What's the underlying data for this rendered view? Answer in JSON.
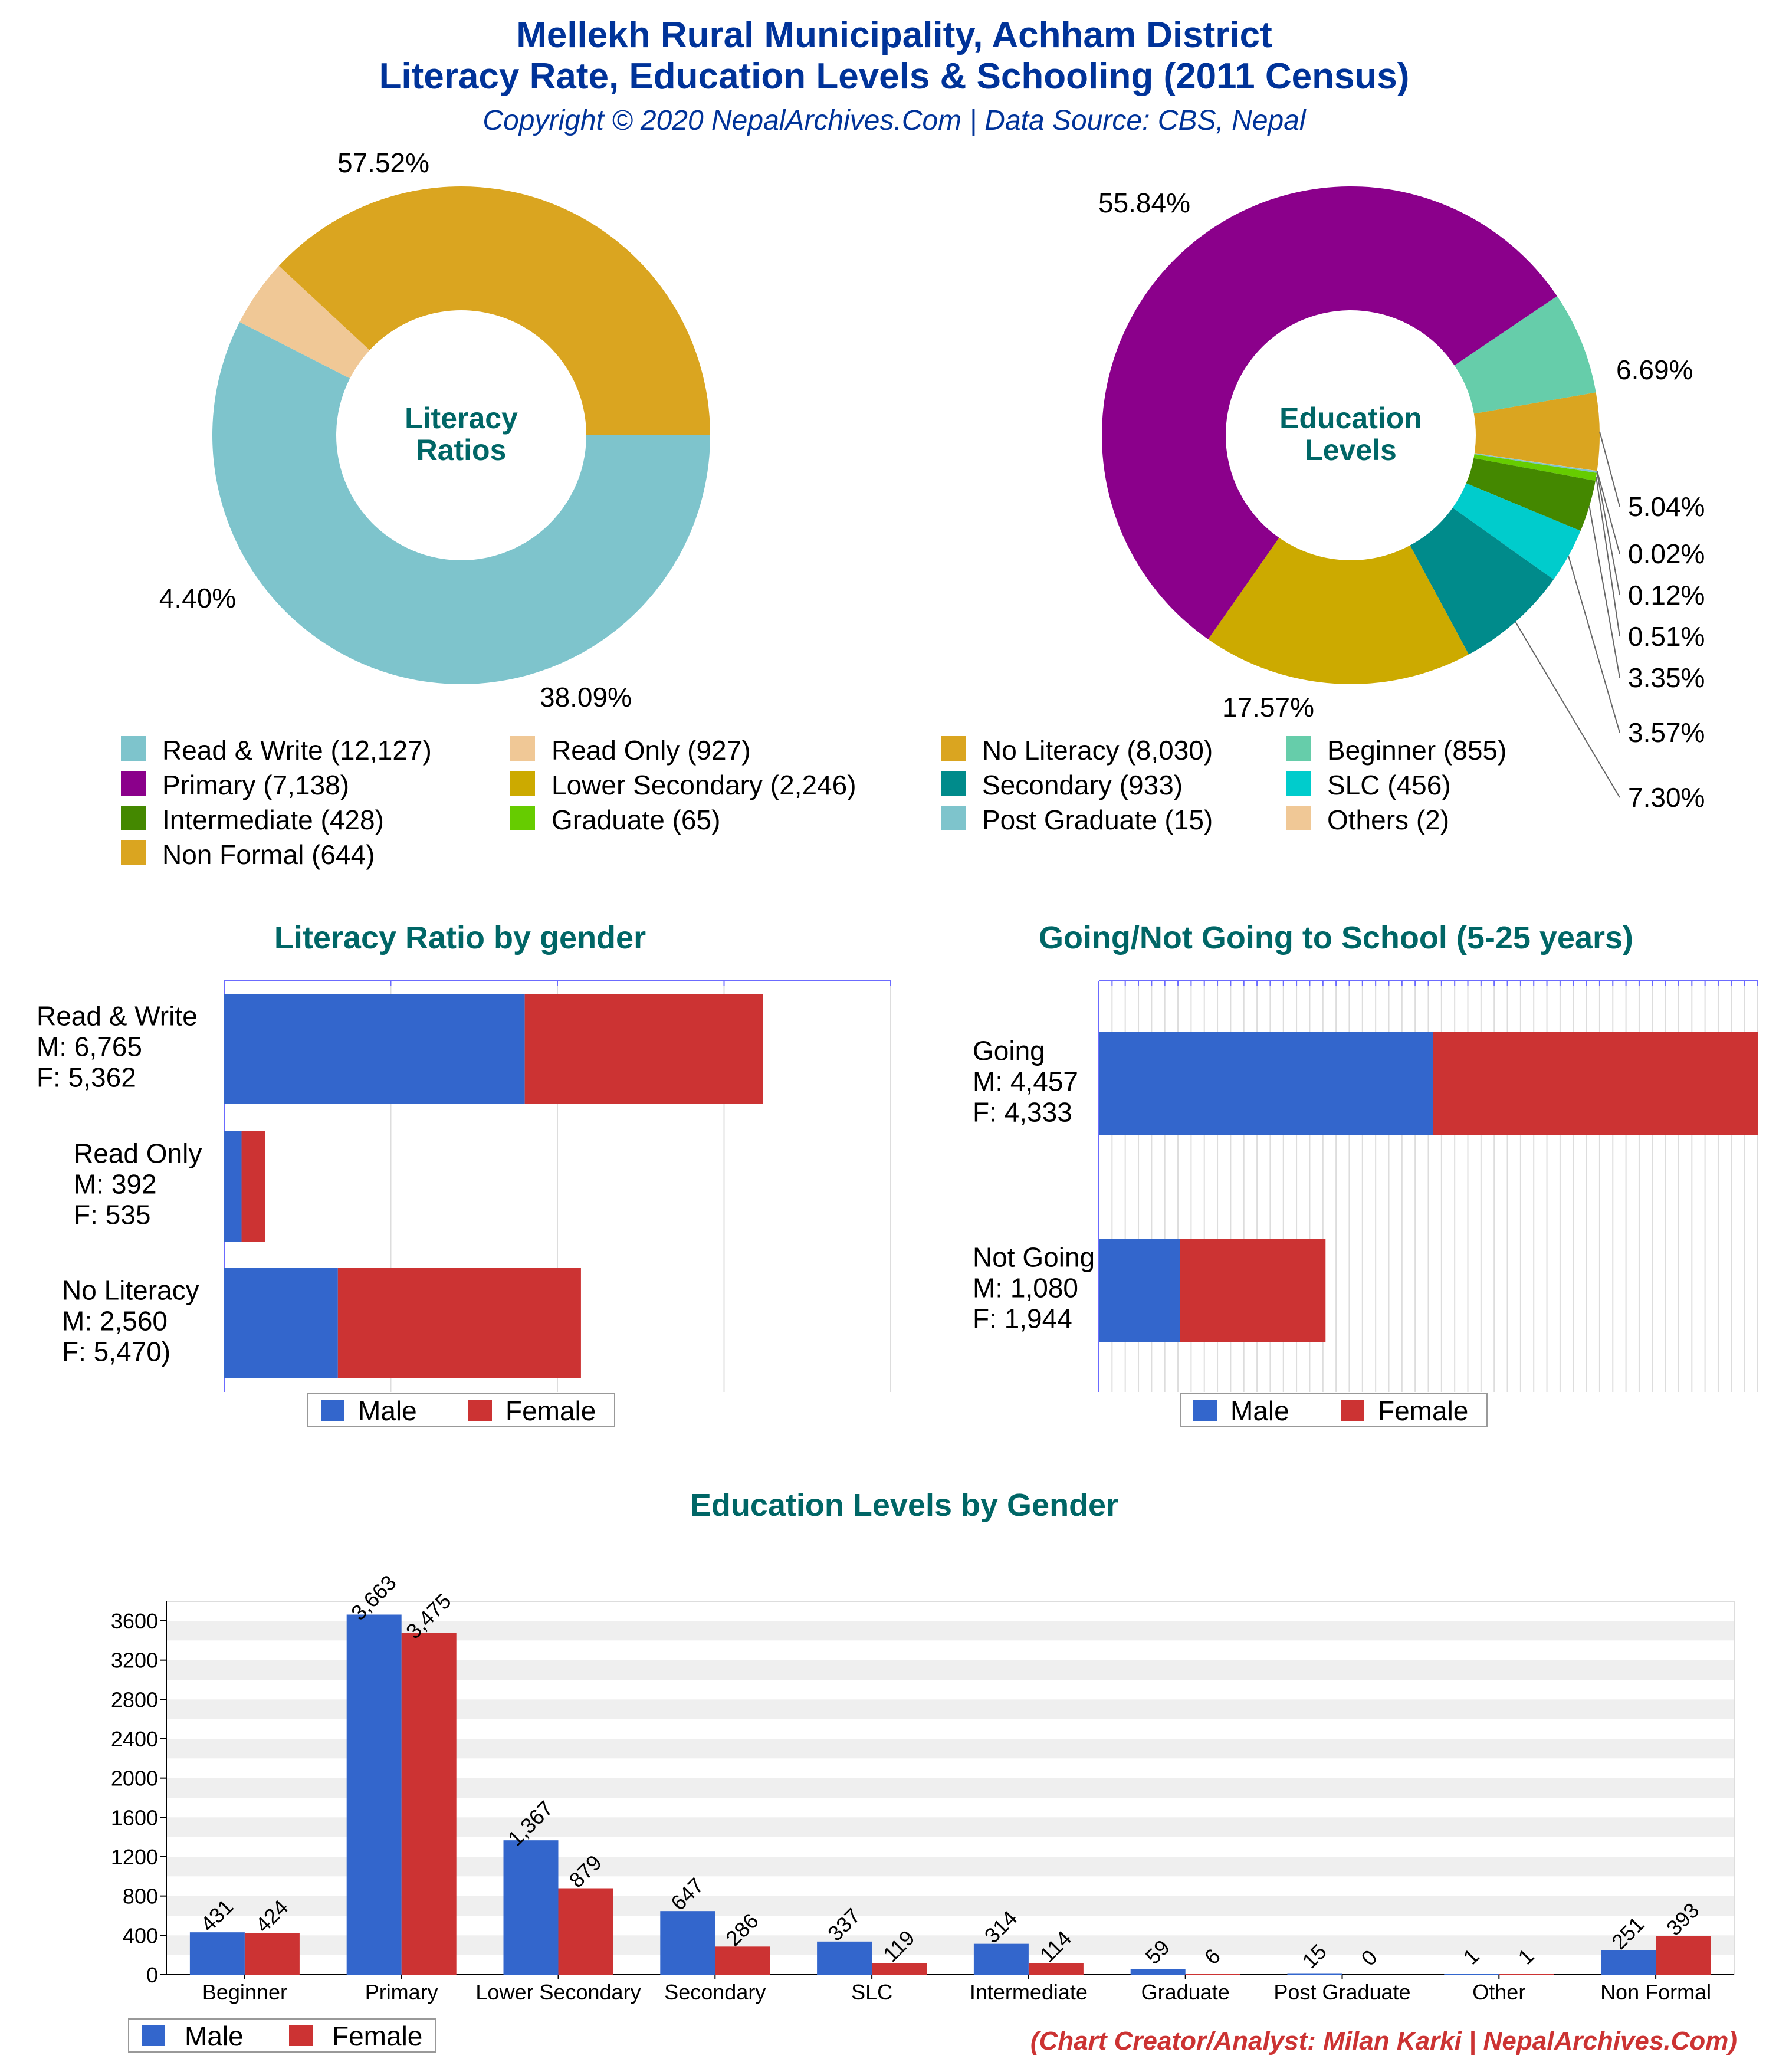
{
  "header": {
    "title_line1": "Mellekh Rural Municipality, Achham District",
    "title_line2": "Literacy Rate, Education Levels & Schooling (2011 Census)",
    "subtitle": "Copyright © 2020 NepalArchives.Com | Data Source: CBS, Nepal"
  },
  "footer": {
    "credit": "(Chart Creator/Analyst: Milan Karki | NepalArchives.Com)"
  },
  "colors": {
    "title": "#003399",
    "section_title": "#006666",
    "credit": "#cc3333",
    "male": "#3366cc",
    "female": "#cc3333"
  },
  "chart_data": [
    {
      "type": "pie",
      "center_label": [
        "Literacy",
        "Ratios"
      ],
      "slices": [
        {
          "label": "Read & Write",
          "value": 12127,
          "pct_label": "57.52%",
          "color": "#7ec4cc"
        },
        {
          "label": "Read Only",
          "value": 927,
          "pct_label": "4.40%",
          "color": "#f0c896"
        },
        {
          "label": "No Literacy",
          "value": 8030,
          "pct_label": "38.09%",
          "color": "#daa520"
        }
      ]
    },
    {
      "type": "pie",
      "center_label": [
        "Education",
        "Levels"
      ],
      "slices": [
        {
          "label": "Beginner",
          "value": 855,
          "pct_label": "6.69%",
          "color": "#66cdaa"
        },
        {
          "label": "Non Formal",
          "value": 644,
          "pct_label": "5.04%",
          "color": "#daa520"
        },
        {
          "label": "Others",
          "value": 2,
          "pct_label": "0.02%",
          "color": "#f0c896"
        },
        {
          "label": "Post Graduate",
          "value": 15,
          "pct_label": "0.12%",
          "color": "#7ec4cc"
        },
        {
          "label": "Graduate",
          "value": 65,
          "pct_label": "0.51%",
          "color": "#66cc00"
        },
        {
          "label": "Intermediate",
          "value": 428,
          "pct_label": "3.35%",
          "color": "#448800"
        },
        {
          "label": "SLC",
          "value": 456,
          "pct_label": "3.57%",
          "color": "#00cccc"
        },
        {
          "label": "Secondary",
          "value": 933,
          "pct_label": "7.30%",
          "color": "#008b8b"
        },
        {
          "label": "Lower Secondary",
          "value": 2246,
          "pct_label": "17.57%",
          "color": "#ccaa00"
        },
        {
          "label": "Primary",
          "value": 7138,
          "pct_label": "55.84%",
          "color": "#8b008b"
        }
      ]
    },
    {
      "type": "bar",
      "orientation": "horizontal",
      "stacked": true,
      "title": "Literacy Ratio by gender",
      "categories": [
        "Read & Write",
        "Read Only",
        "No Literacy"
      ],
      "category_labels": [
        [
          "Read & Write",
          "M: 6,765",
          "F: 5,362"
        ],
        [
          "Read Only",
          "M: 392",
          "F: 535"
        ],
        [
          "No Literacy",
          "M: 2,560",
          "F: 5,470)"
        ]
      ],
      "series": [
        {
          "name": "Male",
          "values": [
            6765,
            392,
            2560
          ]
        },
        {
          "name": "Female",
          "values": [
            5362,
            535,
            5470
          ]
        }
      ],
      "xlim": [
        0,
        15000
      ],
      "legend": "bottom"
    },
    {
      "type": "bar",
      "orientation": "horizontal",
      "stacked": true,
      "title": "Going/Not Going to School (5-25 years)",
      "categories": [
        "Going",
        "Not Going"
      ],
      "category_labels": [
        [
          "Going",
          "M: 4,457",
          "F: 4,333"
        ],
        [
          "Not Going",
          "M: 1,080",
          "F: 1,944"
        ]
      ],
      "series": [
        {
          "name": "Male",
          "values": [
            4457,
            1080
          ]
        },
        {
          "name": "Female",
          "values": [
            4333,
            1944
          ]
        }
      ],
      "xlim": [
        0,
        8790
      ],
      "legend": "bottom"
    },
    {
      "type": "bar",
      "title": "Education Levels by Gender",
      "categories": [
        "Beginner",
        "Primary",
        "Lower Secondary",
        "Secondary",
        "SLC",
        "Intermediate",
        "Graduate",
        "Post Graduate",
        "Other",
        "Non Formal"
      ],
      "series": [
        {
          "name": "Male",
          "values": [
            431,
            3663,
            1367,
            647,
            337,
            314,
            59,
            15,
            1,
            251
          ],
          "labels": [
            "431",
            "3,663",
            "1,367",
            "647",
            "337",
            "314",
            "59",
            "15",
            "1",
            "251"
          ]
        },
        {
          "name": "Female",
          "values": [
            424,
            3475,
            879,
            286,
            119,
            114,
            6,
            0,
            1,
            393
          ],
          "labels": [
            "424",
            "3,475",
            "879",
            "286",
            "119",
            "114",
            "6",
            "0",
            "1",
            "393"
          ]
        }
      ],
      "yticks": [
        "0",
        "400",
        "800",
        "1200",
        "1600",
        "2000",
        "2400",
        "2800",
        "3200",
        "3600"
      ],
      "ylim": [
        0,
        3800
      ],
      "legend": "bottom-left"
    }
  ]
}
